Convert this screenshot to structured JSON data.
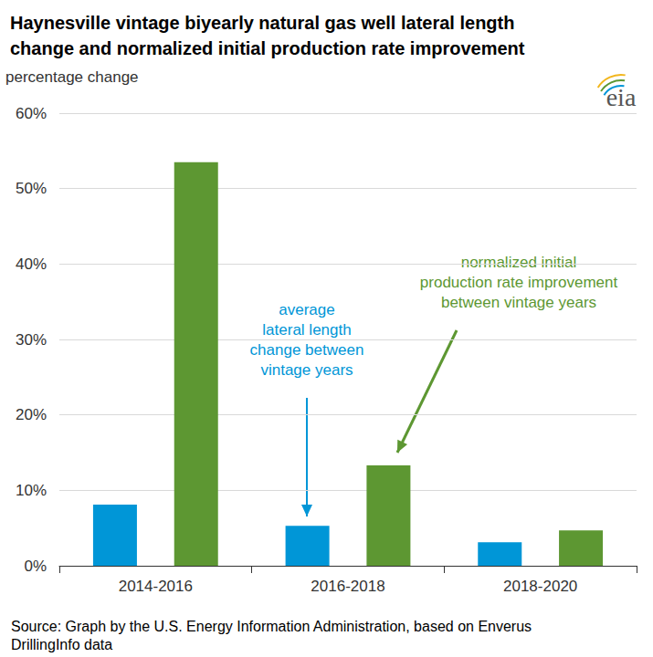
{
  "chart_data": {
    "type": "bar",
    "title": "Haynesville vintage biyearly natural gas well lateral length\nchange and normalized initial production rate improvement",
    "ylabel": "percentage change",
    "categories": [
      "2014-2016",
      "2016-2018",
      "2018-2020"
    ],
    "series": [
      {
        "name": "average\nlateral length\nchange between\nvintage years",
        "color": "#0096d7",
        "values": [
          8.1,
          5.3,
          3.1
        ]
      },
      {
        "name": "normalized initial\nproduction rate improvement\nbetween vintage years",
        "color": "#5d9732",
        "values": [
          53.5,
          13.3,
          4.7
        ]
      }
    ],
    "ylim": [
      0,
      60
    ],
    "yticks": [
      {
        "value": 0,
        "label": "0%"
      },
      {
        "value": 10,
        "label": "10%"
      },
      {
        "value": 20,
        "label": "20%"
      },
      {
        "value": 30,
        "label": "30%"
      },
      {
        "value": 40,
        "label": "40%"
      },
      {
        "value": 50,
        "label": "50%"
      },
      {
        "value": 60,
        "label": "60%"
      }
    ],
    "grid": true,
    "source": "Source: Graph by the U.S. Energy Information Administration, based on Enverus\nDrillingInfo data",
    "logo": "eia"
  }
}
